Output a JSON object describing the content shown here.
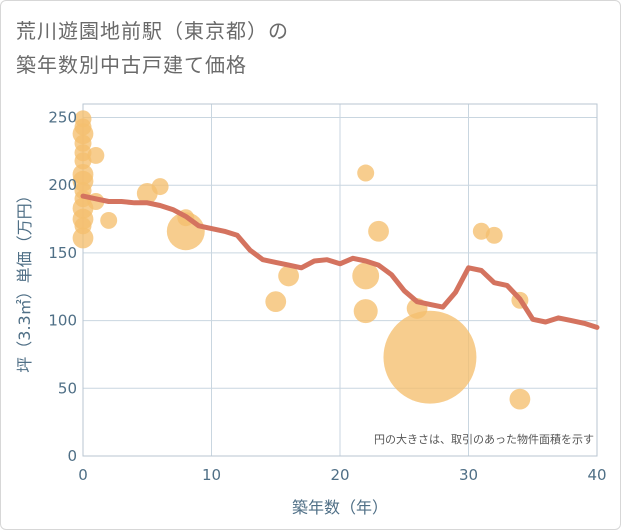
{
  "title_line1": "荒川遊園地前駅（東京都）の",
  "title_line2": "築年数別中古戸建て価格",
  "chart_data": {
    "type": "scatter",
    "title": "荒川遊園地前駅（東京都）の築年数別中古戸建て価格",
    "xlabel": "築年数（年）",
    "ylabel": "坪（3.3㎡）単価（万円）",
    "xlim": [
      0,
      40
    ],
    "ylim": [
      0,
      260
    ],
    "xticks": [
      0,
      10,
      20,
      30,
      40
    ],
    "yticks": [
      0,
      50,
      100,
      150,
      200,
      250
    ],
    "grid": true,
    "note": "円の大きさは、取引のあった物件面積を示す",
    "bubble_color": "#f5bf6e",
    "line_color": "#d4735f",
    "bubbles": [
      {
        "x": 0,
        "y": 249,
        "s": 2
      },
      {
        "x": 0,
        "y": 243,
        "s": 2
      },
      {
        "x": 0,
        "y": 238,
        "s": 3
      },
      {
        "x": 0,
        "y": 231,
        "s": 2
      },
      {
        "x": 0,
        "y": 224,
        "s": 2
      },
      {
        "x": 0,
        "y": 218,
        "s": 2
      },
      {
        "x": 0,
        "y": 208,
        "s": 3
      },
      {
        "x": 0,
        "y": 203,
        "s": 3
      },
      {
        "x": 0,
        "y": 196,
        "s": 2
      },
      {
        "x": 0,
        "y": 190,
        "s": 2
      },
      {
        "x": 0,
        "y": 183,
        "s": 3
      },
      {
        "x": 0,
        "y": 175,
        "s": 3
      },
      {
        "x": 0,
        "y": 170,
        "s": 2
      },
      {
        "x": 0,
        "y": 161,
        "s": 3
      },
      {
        "x": 1,
        "y": 222,
        "s": 2
      },
      {
        "x": 1,
        "y": 188,
        "s": 2
      },
      {
        "x": 2,
        "y": 174,
        "s": 2
      },
      {
        "x": 5,
        "y": 194,
        "s": 3
      },
      {
        "x": 6,
        "y": 199,
        "s": 2
      },
      {
        "x": 8,
        "y": 176,
        "s": 2
      },
      {
        "x": 8,
        "y": 166,
        "s": 10
      },
      {
        "x": 15,
        "y": 114,
        "s": 3
      },
      {
        "x": 16,
        "y": 133,
        "s": 3
      },
      {
        "x": 22,
        "y": 209,
        "s": 2
      },
      {
        "x": 22,
        "y": 133,
        "s": 5
      },
      {
        "x": 22,
        "y": 107,
        "s": 4
      },
      {
        "x": 23,
        "y": 166,
        "s": 3
      },
      {
        "x": 26,
        "y": 109,
        "s": 3
      },
      {
        "x": 27,
        "y": 73,
        "s": 60
      },
      {
        "x": 31,
        "y": 166,
        "s": 2
      },
      {
        "x": 32,
        "y": 163,
        "s": 2
      },
      {
        "x": 34,
        "y": 115,
        "s": 2
      },
      {
        "x": 34,
        "y": 42,
        "s": 3
      }
    ],
    "trend_line": {
      "x": [
        0,
        1,
        2,
        3,
        4,
        5,
        6,
        7,
        8,
        9,
        10,
        11,
        12,
        13,
        14,
        15,
        16,
        17,
        18,
        19,
        20,
        21,
        22,
        23,
        24,
        25,
        26,
        27,
        28,
        29,
        30,
        31,
        32,
        33,
        34,
        35,
        36,
        37,
        38,
        39,
        40
      ],
      "y": [
        192,
        190,
        188,
        188,
        187,
        187,
        185,
        182,
        177,
        170,
        168,
        166,
        163,
        152,
        145,
        143,
        141,
        139,
        144,
        145,
        142,
        146,
        144,
        141,
        134,
        122,
        114,
        112,
        110,
        121,
        139,
        137,
        128,
        126,
        116,
        101,
        99,
        102,
        100,
        98,
        95
      ]
    }
  }
}
